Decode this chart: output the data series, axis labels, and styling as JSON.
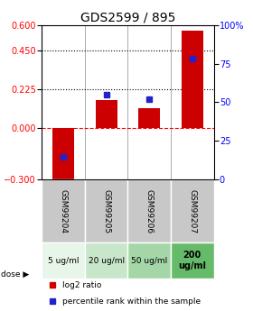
{
  "title": "GDS2599 / 895",
  "samples": [
    "GSM99204",
    "GSM99205",
    "GSM99206",
    "GSM99207"
  ],
  "doses": [
    "5 ug/ml",
    "20 ug/ml",
    "50 ug/ml",
    "200\nug/ml"
  ],
  "log2_ratio": [
    -0.33,
    0.165,
    0.115,
    0.565
  ],
  "percentile_rank": [
    15,
    55,
    52,
    78
  ],
  "ylim_left": [
    -0.3,
    0.6
  ],
  "ylim_right": [
    0,
    100
  ],
  "left_ticks": [
    -0.3,
    0,
    0.225,
    0.45,
    0.6
  ],
  "right_ticks": [
    0,
    25,
    50,
    75,
    100
  ],
  "hlines": [
    0.225,
    0.45
  ],
  "bar_color_red": "#cc0000",
  "bar_color_blue": "#2222cc",
  "dose_bg_colors": [
    "#e8f5e9",
    "#c8e6c9",
    "#a5d6a7",
    "#66bb6a"
  ],
  "sample_bg_color": "#c8c8c8",
  "title_fontsize": 10,
  "tick_fontsize": 7,
  "label_fontsize": 6.5,
  "legend_fontsize": 6.5
}
